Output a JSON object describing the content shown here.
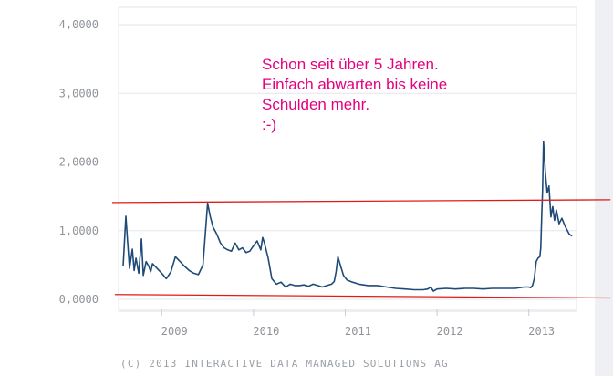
{
  "chart_data": {
    "type": "line",
    "title": "",
    "xlabel": "",
    "ylabel": "",
    "ylim": [
      0,
      4
    ],
    "grid": true,
    "y_ticks": [
      "0,0000",
      "1,0000",
      "2,0000",
      "3,0000",
      "4,0000"
    ],
    "x_ticks": [
      "2009",
      "2010",
      "2011",
      "2012",
      "2013"
    ],
    "x_range": [
      2008.58,
      2013.47
    ],
    "series": [
      {
        "color": "#1f4a78",
        "x": [
          2008.58,
          2008.61,
          2008.63,
          2008.65,
          2008.68,
          2008.7,
          2008.72,
          2008.75,
          2008.78,
          2008.8,
          2008.83,
          2008.86,
          2008.88,
          2008.9,
          2008.95,
          2009.0,
          2009.05,
          2009.1,
          2009.15,
          2009.2,
          2009.25,
          2009.3,
          2009.35,
          2009.4,
          2009.45,
          2009.5,
          2009.53,
          2009.56,
          2009.6,
          2009.64,
          2009.68,
          2009.72,
          2009.76,
          2009.8,
          2009.84,
          2009.88,
          2009.92,
          2009.96,
          2010.0,
          2010.04,
          2010.08,
          2010.1,
          2010.12,
          2010.16,
          2010.2,
          2010.25,
          2010.3,
          2010.35,
          2010.4,
          2010.45,
          2010.5,
          2010.55,
          2010.6,
          2010.65,
          2010.7,
          2010.75,
          2010.8,
          2010.85,
          2010.88,
          2010.9,
          2010.92,
          2010.95,
          2010.98,
          2011.02,
          2011.08,
          2011.15,
          2011.25,
          2011.35,
          2011.45,
          2011.55,
          2011.65,
          2011.75,
          2011.85,
          2011.9,
          2011.93,
          2011.96,
          2012.0,
          2012.1,
          2012.2,
          2012.3,
          2012.4,
          2012.5,
          2012.6,
          2012.7,
          2012.8,
          2012.85,
          2012.9,
          2012.95,
          2013.0,
          2013.02,
          2013.04,
          2013.06,
          2013.08,
          2013.1,
          2013.12,
          2013.13,
          2013.14,
          2013.15,
          2013.16,
          2013.18,
          2013.2,
          2013.22,
          2013.24,
          2013.26,
          2013.28,
          2013.3,
          2013.33,
          2013.36,
          2013.4,
          2013.44,
          2013.47
        ],
        "y": [
          0.48,
          1.21,
          0.82,
          0.45,
          0.73,
          0.42,
          0.6,
          0.38,
          0.88,
          0.35,
          0.55,
          0.48,
          0.4,
          0.52,
          0.45,
          0.38,
          0.3,
          0.4,
          0.62,
          0.55,
          0.48,
          0.42,
          0.38,
          0.36,
          0.5,
          1.4,
          1.2,
          1.05,
          0.95,
          0.82,
          0.75,
          0.72,
          0.7,
          0.82,
          0.72,
          0.75,
          0.68,
          0.7,
          0.78,
          0.85,
          0.72,
          0.9,
          0.82,
          0.6,
          0.3,
          0.22,
          0.25,
          0.18,
          0.22,
          0.2,
          0.2,
          0.21,
          0.19,
          0.22,
          0.2,
          0.18,
          0.2,
          0.22,
          0.26,
          0.4,
          0.62,
          0.48,
          0.35,
          0.28,
          0.25,
          0.22,
          0.2,
          0.2,
          0.18,
          0.16,
          0.15,
          0.14,
          0.14,
          0.15,
          0.18,
          0.12,
          0.15,
          0.16,
          0.15,
          0.16,
          0.16,
          0.15,
          0.16,
          0.16,
          0.16,
          0.16,
          0.17,
          0.18,
          0.18,
          0.17,
          0.2,
          0.3,
          0.55,
          0.6,
          0.62,
          0.75,
          1.2,
          1.6,
          2.3,
          1.85,
          1.55,
          1.65,
          1.2,
          1.35,
          1.15,
          1.3,
          1.1,
          1.18,
          1.05,
          0.95,
          0.92
        ]
      }
    ],
    "reference_lines": [
      {
        "color": "#dd1c1a",
        "from": [
          2008.46,
          1.41
        ],
        "to": [
          2013.89,
          1.45
        ]
      },
      {
        "color": "#dd1c1a",
        "from": [
          2008.49,
          0.07
        ],
        "to": [
          2013.89,
          0.02
        ]
      }
    ],
    "annotation": {
      "color": "#e4007f",
      "lines": [
        "Schon seit über 5 Jahren.",
        "Einfach abwarten bis keine",
        "Schulden mehr.",
        ":-)"
      ]
    },
    "credit": "(C) 2013 INTERACTIVE DATA MANAGED SOLUTIONS AG"
  }
}
